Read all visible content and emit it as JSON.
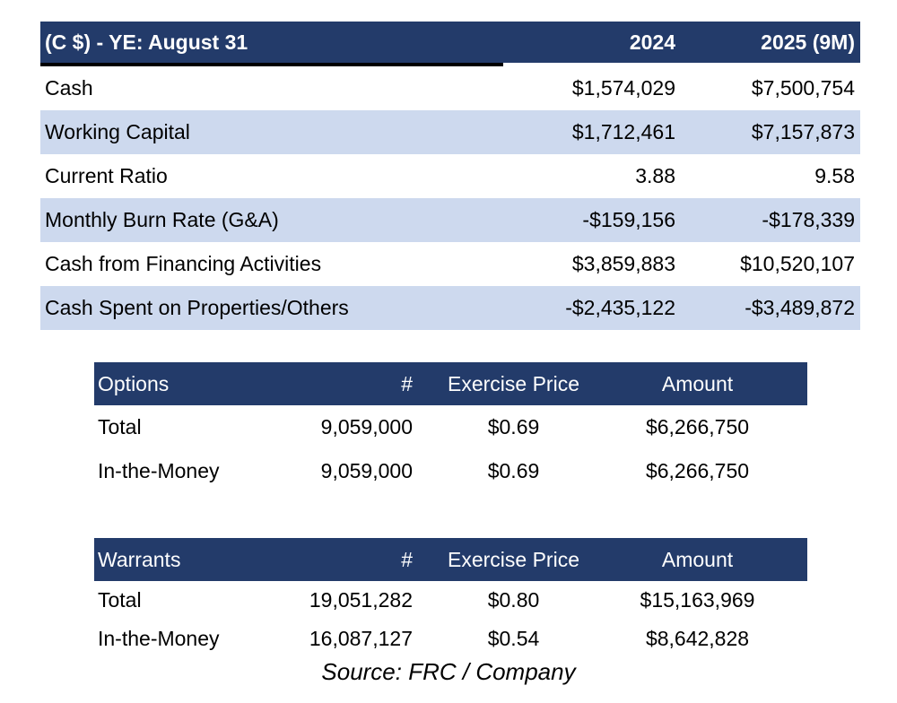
{
  "financials": {
    "header": {
      "label": "(C $) - YE: August 31",
      "col1": "2024",
      "col2": "2025 (9M)"
    },
    "rows": [
      {
        "label": "Cash",
        "v2024": "$1,574,029",
        "v2025": "$7,500,754"
      },
      {
        "label": "Working Capital",
        "v2024": "$1,712,461",
        "v2025": "$7,157,873"
      },
      {
        "label": "Current Ratio",
        "v2024": "3.88",
        "v2025": "9.58"
      },
      {
        "label": "Monthly Burn Rate (G&A)",
        "v2024": "-$159,156",
        "v2025": "-$178,339"
      },
      {
        "label": "Cash from Financing Activities",
        "v2024": "$3,859,883",
        "v2025": "$10,520,107"
      },
      {
        "label": "Cash Spent on Properties/Others",
        "v2024": "-$2,435,122",
        "v2025": "-$3,489,872"
      }
    ]
  },
  "options": {
    "header": {
      "label": "Options",
      "num": "#",
      "price": "Exercise Price",
      "amount": "Amount"
    },
    "rows": [
      {
        "label": "Total",
        "num": "9,059,000",
        "price": "$0.69",
        "amount": "$6,266,750"
      },
      {
        "label": "In-the-Money",
        "num": "9,059,000",
        "price": "$0.69",
        "amount": "$6,266,750"
      }
    ]
  },
  "warrants": {
    "header": {
      "label": "Warrants",
      "num": "#",
      "price": "Exercise Price",
      "amount": "Amount"
    },
    "rows": [
      {
        "label": "Total",
        "num": "19,051,282",
        "price": "$0.80",
        "amount": "$15,163,969"
      },
      {
        "label": "In-the-Money",
        "num": "16,087,127",
        "price": "$0.54",
        "amount": "$8,642,828"
      }
    ]
  },
  "source": "Source: FRC / Company",
  "colors": {
    "header_navy": "#233b6a",
    "row_band": "#cdd9ee"
  }
}
